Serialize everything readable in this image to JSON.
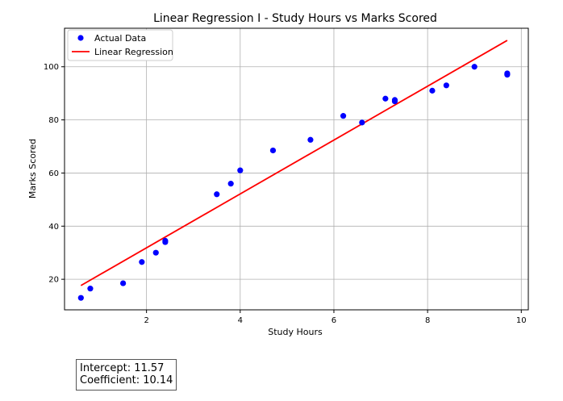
{
  "chart_data": {
    "type": "scatter",
    "title": "Linear Regression I - Study Hours vs Marks Scored",
    "xlabel": "Study Hours",
    "ylabel": "Marks Scored",
    "xlim": [
      0.25,
      10.15
    ],
    "ylim": [
      8.5,
      114.5
    ],
    "xticks": [
      2,
      4,
      6,
      8,
      10
    ],
    "yticks": [
      20,
      40,
      60,
      80,
      100
    ],
    "grid": true,
    "legend": "top-left",
    "series": [
      {
        "name": "Actual Data",
        "kind": "scatter",
        "color": "#0000ff",
        "x": [
          0.6,
          0.8,
          1.5,
          1.9,
          2.2,
          2.4,
          2.4,
          3.5,
          3.8,
          4.0,
          4.7,
          5.5,
          6.2,
          6.6,
          7.1,
          7.3,
          7.3,
          8.1,
          8.4,
          9.0,
          9.7,
          9.7
        ],
        "y": [
          13,
          16.5,
          18.5,
          26.5,
          30,
          34,
          34.5,
          52,
          56,
          61,
          68.5,
          72.5,
          81.5,
          79,
          88,
          87,
          87.5,
          91,
          93,
          100,
          97,
          97.5
        ]
      },
      {
        "name": "Linear Regression",
        "kind": "line",
        "color": "#ff0000",
        "x": [
          0.6,
          9.7
        ],
        "y": [
          17.65,
          109.93
        ]
      }
    ]
  },
  "info": {
    "intercept_text": "Intercept: 11.57",
    "coefficient_text": "Coefficient: 10.14"
  }
}
